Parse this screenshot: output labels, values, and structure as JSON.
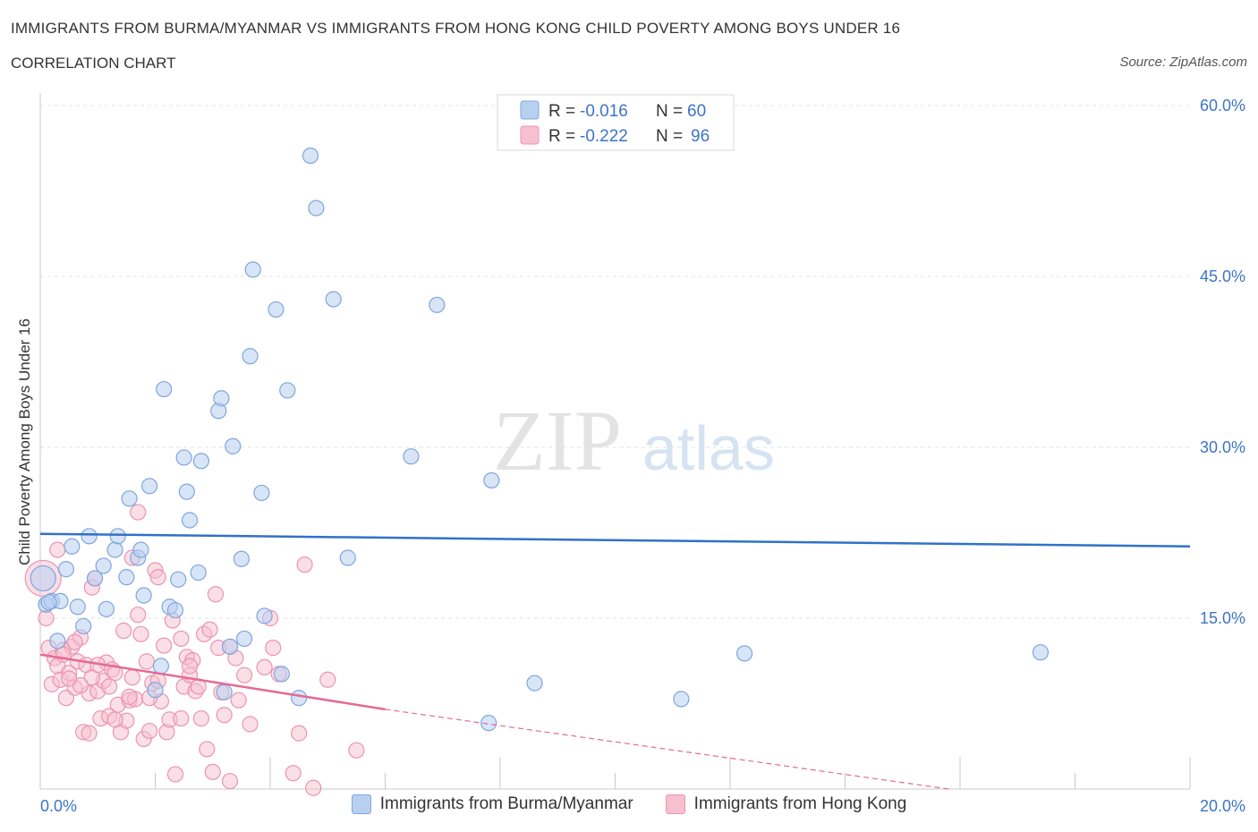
{
  "header": {
    "title": "IMMIGRANTS FROM BURMA/MYANMAR VS IMMIGRANTS FROM HONG KONG CHILD POVERTY AMONG BOYS UNDER 16",
    "subtitle": "CORRELATION CHART",
    "source": "Source: ZipAtlas.com"
  },
  "watermark": {
    "zip": "ZIP",
    "atlas": "atlas"
  },
  "legend": {
    "series1": {
      "r_label": "R = ",
      "r_value": "-0.016",
      "n_label": "N = ",
      "n_value": "60"
    },
    "series2": {
      "r_label": "R = ",
      "r_value": "-0.222",
      "n_label": "N = ",
      "n_value": "96"
    }
  },
  "bottom_legend": {
    "series1": "Immigrants from Burma/Myanmar",
    "series2": "Immigrants from Hong Kong"
  },
  "colors": {
    "blue_fill": "#b8d0f0",
    "blue_stroke": "#7fa6dc",
    "blue_line": "#2f72c8",
    "pink_fill": "#f6c0d0",
    "pink_stroke": "#ec93b0",
    "pink_line": "#e46a94",
    "tick_text": "#3d74c8",
    "grid": "#dde3ea"
  },
  "chart_data": {
    "type": "scatter",
    "xlabel": "",
    "ylabel": "Child Poverty Among Boys Under 16",
    "xlim": [
      0,
      20
    ],
    "ylim": [
      0,
      60
    ],
    "x_tick_labels": [
      "0.0%",
      "20.0%"
    ],
    "y_ticks": [
      15,
      30,
      45,
      60
    ],
    "y_tick_labels": [
      "15.0%",
      "30.0%",
      "45.0%",
      "60.0%"
    ],
    "series": [
      {
        "name": "Immigrants from Burma/Myanmar",
        "trend": {
          "x0": 0,
          "y0": 22.4,
          "x1": 20,
          "y1": 21.3
        },
        "points": [
          [
            0.05,
            18.5
          ],
          [
            0.1,
            16.2
          ],
          [
            0.2,
            16.5
          ],
          [
            0.3,
            13.0
          ],
          [
            0.35,
            16.5
          ],
          [
            0.45,
            19.3
          ],
          [
            0.55,
            21.3
          ],
          [
            0.65,
            16.0
          ],
          [
            0.75,
            14.3
          ],
          [
            0.85,
            22.2
          ],
          [
            0.95,
            18.5
          ],
          [
            1.1,
            19.6
          ],
          [
            1.15,
            15.8
          ],
          [
            1.3,
            21.0
          ],
          [
            1.35,
            22.2
          ],
          [
            1.5,
            18.6
          ],
          [
            1.55,
            25.5
          ],
          [
            1.7,
            20.3
          ],
          [
            1.75,
            21.0
          ],
          [
            1.8,
            17.0
          ],
          [
            1.9,
            26.6
          ],
          [
            2.0,
            8.7
          ],
          [
            2.1,
            10.8
          ],
          [
            2.15,
            35.1
          ],
          [
            2.25,
            16.0
          ],
          [
            2.35,
            15.7
          ],
          [
            2.4,
            18.4
          ],
          [
            2.5,
            29.1
          ],
          [
            2.55,
            26.1
          ],
          [
            2.6,
            23.6
          ],
          [
            2.75,
            19.0
          ],
          [
            2.8,
            28.8
          ],
          [
            3.1,
            33.2
          ],
          [
            3.15,
            34.3
          ],
          [
            3.2,
            8.5
          ],
          [
            3.3,
            12.5
          ],
          [
            3.35,
            30.1
          ],
          [
            3.5,
            20.2
          ],
          [
            3.55,
            13.2
          ],
          [
            3.65,
            38.0
          ],
          [
            3.7,
            45.6
          ],
          [
            3.85,
            26.0
          ],
          [
            3.9,
            15.2
          ],
          [
            4.1,
            42.1
          ],
          [
            4.2,
            10.1
          ],
          [
            4.3,
            35.0
          ],
          [
            4.5,
            8.0
          ],
          [
            4.7,
            55.6
          ],
          [
            4.8,
            51.0
          ],
          [
            5.1,
            43.0
          ],
          [
            5.35,
            20.3
          ],
          [
            6.9,
            42.5
          ],
          [
            6.45,
            29.2
          ],
          [
            7.85,
            27.1
          ],
          [
            7.8,
            5.8
          ],
          [
            8.6,
            9.3
          ],
          [
            11.15,
            7.9
          ],
          [
            12.25,
            11.9
          ],
          [
            17.4,
            12.0
          ],
          [
            0.15,
            16.4
          ]
        ]
      },
      {
        "name": "Immigrants from Hong Kong",
        "trend": {
          "x0": 0,
          "y0": 11.8,
          "x1": 6.0,
          "y1": 7.0
        },
        "trend_dashed": {
          "x0": 6.0,
          "y0": 7.0,
          "x1": 20,
          "y1": -3.0
        },
        "points": [
          [
            0.05,
            18.5
          ],
          [
            0.1,
            15.0
          ],
          [
            0.15,
            12.4
          ],
          [
            0.2,
            9.2
          ],
          [
            0.25,
            11.5
          ],
          [
            0.3,
            10.8
          ],
          [
            0.35,
            9.6
          ],
          [
            0.4,
            12.2
          ],
          [
            0.45,
            8.0
          ],
          [
            0.5,
            10.2
          ],
          [
            0.55,
            12.5
          ],
          [
            0.6,
            8.9
          ],
          [
            0.65,
            11.2
          ],
          [
            0.7,
            13.3
          ],
          [
            0.75,
            5.0
          ],
          [
            0.8,
            10.9
          ],
          [
            0.85,
            8.4
          ],
          [
            0.9,
            17.7
          ],
          [
            0.95,
            18.5
          ],
          [
            1.0,
            8.6
          ],
          [
            1.05,
            6.2
          ],
          [
            1.1,
            9.5
          ],
          [
            1.15,
            11.1
          ],
          [
            1.2,
            6.4
          ],
          [
            1.25,
            10.5
          ],
          [
            1.3,
            10.2
          ],
          [
            1.35,
            7.4
          ],
          [
            1.4,
            5.0
          ],
          [
            1.45,
            13.9
          ],
          [
            1.5,
            6.0
          ],
          [
            1.55,
            7.8
          ],
          [
            1.6,
            9.8
          ],
          [
            1.65,
            7.9
          ],
          [
            1.7,
            15.3
          ],
          [
            1.75,
            13.6
          ],
          [
            1.8,
            4.4
          ],
          [
            1.85,
            11.2
          ],
          [
            1.9,
            5.1
          ],
          [
            1.95,
            9.3
          ],
          [
            2.0,
            19.2
          ],
          [
            2.05,
            18.6
          ],
          [
            2.1,
            7.7
          ],
          [
            2.15,
            12.6
          ],
          [
            2.2,
            5.0
          ],
          [
            2.25,
            6.1
          ],
          [
            2.3,
            14.8
          ],
          [
            2.35,
            1.3
          ],
          [
            2.45,
            6.2
          ],
          [
            2.5,
            9.0
          ],
          [
            2.55,
            11.6
          ],
          [
            2.6,
            10.0
          ],
          [
            2.65,
            11.3
          ],
          [
            2.7,
            8.6
          ],
          [
            2.75,
            9.0
          ],
          [
            2.8,
            6.2
          ],
          [
            2.85,
            13.6
          ],
          [
            2.9,
            3.5
          ],
          [
            2.95,
            14.0
          ],
          [
            3.0,
            1.5
          ],
          [
            3.05,
            17.1
          ],
          [
            3.1,
            12.4
          ],
          [
            3.15,
            8.5
          ],
          [
            3.2,
            6.5
          ],
          [
            3.3,
            0.7
          ],
          [
            3.4,
            11.5
          ],
          [
            3.45,
            7.8
          ],
          [
            3.55,
            10.0
          ],
          [
            3.65,
            5.7
          ],
          [
            3.9,
            10.7
          ],
          [
            4.0,
            15.0
          ],
          [
            4.05,
            12.4
          ],
          [
            4.15,
            10.1
          ],
          [
            4.4,
            1.4
          ],
          [
            4.5,
            4.9
          ],
          [
            4.6,
            19.7
          ],
          [
            4.75,
            0.1
          ],
          [
            5.0,
            9.6
          ],
          [
            5.5,
            3.4
          ],
          [
            0.3,
            21.0
          ],
          [
            1.7,
            24.3
          ],
          [
            1.6,
            20.3
          ],
          [
            0.9,
            9.8
          ],
          [
            1.2,
            9.0
          ],
          [
            1.9,
            8.0
          ],
          [
            2.05,
            9.5
          ],
          [
            0.6,
            12.9
          ],
          [
            0.4,
            11.8
          ],
          [
            0.7,
            9.1
          ],
          [
            1.0,
            10.9
          ],
          [
            1.3,
            6.1
          ],
          [
            2.6,
            10.8
          ],
          [
            2.45,
            13.2
          ],
          [
            3.3,
            12.5
          ],
          [
            0.85,
            4.9
          ],
          [
            0.5,
            9.7
          ],
          [
            1.55,
            8.1
          ]
        ]
      }
    ]
  }
}
